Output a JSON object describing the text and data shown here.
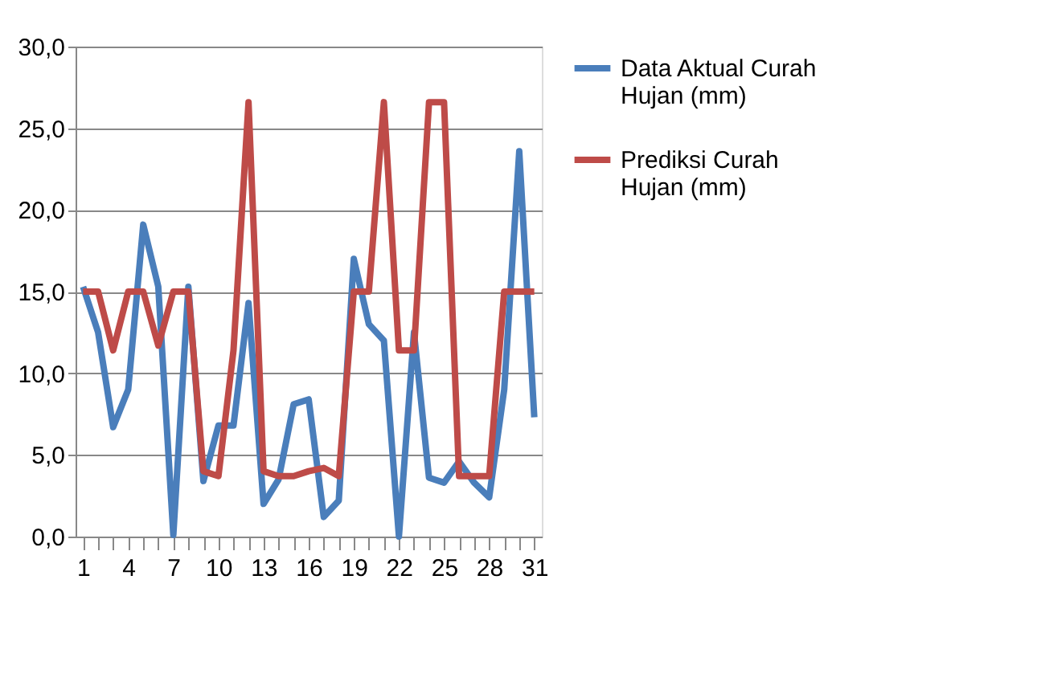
{
  "chart_data": {
    "type": "line",
    "categories": [
      "1",
      null,
      null,
      "4",
      null,
      null,
      "7",
      null,
      null,
      "10",
      null,
      null,
      "13",
      null,
      null,
      "16",
      null,
      null,
      "19",
      null,
      null,
      "22",
      null,
      null,
      "25",
      null,
      null,
      "28",
      null,
      null,
      "31"
    ],
    "series": [
      {
        "name": "Data Aktual Curah Hujan (mm)",
        "color": "#4a7ebb",
        "values": [
          15.3,
          12.5,
          6.7,
          9.0,
          19.1,
          15.3,
          0.1,
          15.3,
          3.4,
          6.8,
          6.8,
          14.3,
          2.0,
          3.5,
          8.1,
          8.4,
          1.2,
          2.2,
          17.0,
          13.0,
          12.0,
          0.0,
          12.5,
          3.6,
          3.3,
          4.6,
          3.3,
          2.4,
          9.0,
          23.6,
          7.3
        ]
      },
      {
        "name": "Prediksi Curah Hujan (mm)",
        "color": "#be4b48",
        "values": [
          15.0,
          15.0,
          11.4,
          15.0,
          15.0,
          11.7,
          15.0,
          15.0,
          4.0,
          3.7,
          11.4,
          26.6,
          4.0,
          3.7,
          3.7,
          4.0,
          4.2,
          3.7,
          15.0,
          15.0,
          26.6,
          11.4,
          11.4,
          26.6,
          26.6,
          3.7,
          3.7,
          3.7,
          15.0,
          15.0,
          15.0
        ]
      }
    ],
    "ylim": [
      0,
      30
    ],
    "yticks": [
      {
        "value": 0,
        "label": "0,0"
      },
      {
        "value": 5,
        "label": "5,0"
      },
      {
        "value": 10,
        "label": "10,0"
      },
      {
        "value": 15,
        "label": "15,0"
      },
      {
        "value": 20,
        "label": "20,0"
      },
      {
        "value": 25,
        "label": "25,0"
      },
      {
        "value": 30,
        "label": "30,0"
      }
    ],
    "grid": "y",
    "legend": "right",
    "marker": "none",
    "line_style": "solid"
  }
}
